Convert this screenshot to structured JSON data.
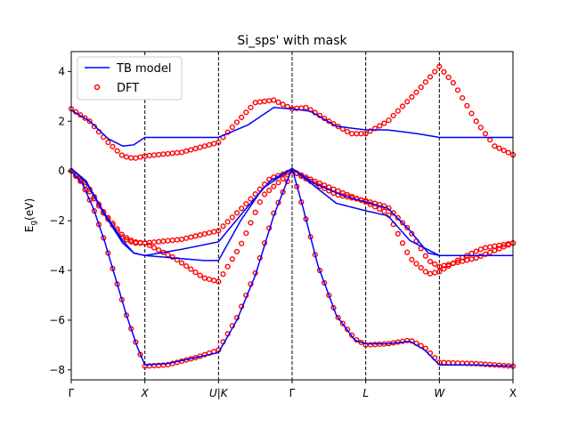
{
  "chart_data": {
    "type": "line",
    "title": "Si_sps' with mask",
    "xlabel": "",
    "ylabel": "E_g(eV)",
    "ylim": [
      -8.4,
      4.8
    ],
    "xlim": [
      0,
      6
    ],
    "yticks": [
      -8,
      -6,
      -4,
      -2,
      0,
      2,
      4
    ],
    "xticks": [
      {
        "pos": 0,
        "label": "Γ"
      },
      {
        "pos": 1,
        "label": "X"
      },
      {
        "pos": 2,
        "label": "U|K"
      },
      {
        "pos": 3,
        "label": "Γ"
      },
      {
        "pos": 4,
        "label": "L"
      },
      {
        "pos": 5,
        "label": "W"
      },
      {
        "pos": 6,
        "label": "X"
      }
    ],
    "high_symmetry_lines": [
      1,
      2,
      3,
      4,
      5
    ],
    "legend": {
      "position": "top-left",
      "entries": [
        "TB model",
        "DFT"
      ]
    },
    "series": [
      {
        "name": "TB model",
        "style": "line",
        "color": "#0000ff",
        "bands": [
          [
            [
              0,
              2.45
            ],
            [
              0.25,
              2.0
            ],
            [
              0.5,
              1.3
            ],
            [
              0.7,
              1.0
            ],
            [
              0.85,
              1.05
            ],
            [
              1,
              1.35
            ],
            [
              1.5,
              1.35
            ],
            [
              2,
              1.35
            ],
            [
              2.4,
              1.85
            ],
            [
              2.75,
              2.55
            ],
            [
              3,
              2.5
            ],
            [
              3.25,
              2.4
            ],
            [
              3.6,
              1.8
            ],
            [
              4,
              1.65
            ],
            [
              4.3,
              1.65
            ],
            [
              4.7,
              1.5
            ],
            [
              5,
              1.35
            ],
            [
              5.5,
              1.35
            ],
            [
              6,
              1.35
            ]
          ],
          [
            [
              0,
              0.1
            ],
            [
              0.2,
              -0.4
            ],
            [
              0.45,
              -1.7
            ],
            [
              0.7,
              -2.8
            ],
            [
              0.85,
              -3.3
            ],
            [
              1,
              -3.4
            ],
            [
              1.5,
              -3.15
            ],
            [
              2,
              -2.85
            ],
            [
              2.35,
              -1.6
            ],
            [
              2.7,
              -0.4
            ],
            [
              3,
              0.1
            ],
            [
              3.3,
              -0.6
            ],
            [
              3.6,
              -1.3
            ],
            [
              4,
              -1.6
            ],
            [
              4.3,
              -1.8
            ],
            [
              4.6,
              -2.8
            ],
            [
              5,
              -3.4
            ],
            [
              5.5,
              -3.4
            ],
            [
              6,
              -3.4
            ]
          ],
          [
            [
              0,
              0.1
            ],
            [
              0.2,
              -0.45
            ],
            [
              0.45,
              -1.75
            ],
            [
              0.7,
              -2.9
            ],
            [
              0.85,
              -3.3
            ],
            [
              1,
              -3.4
            ],
            [
              1.4,
              -3.5
            ],
            [
              1.8,
              -3.6
            ],
            [
              2,
              -3.6
            ],
            [
              2.3,
              -2.0
            ],
            [
              2.6,
              -0.7
            ],
            [
              3,
              0.1
            ],
            [
              3.3,
              -0.5
            ],
            [
              3.7,
              -1.0
            ],
            [
              4,
              -1.25
            ],
            [
              4.3,
              -1.5
            ],
            [
              4.6,
              -2.4
            ],
            [
              4.85,
              -3.3
            ],
            [
              5,
              -3.4
            ],
            [
              5.5,
              -3.4
            ],
            [
              6,
              -3.4
            ]
          ],
          [
            [
              0,
              0.0
            ],
            [
              0.15,
              -0.5
            ],
            [
              0.3,
              -1.5
            ],
            [
              0.45,
              -2.8
            ],
            [
              0.6,
              -4.3
            ],
            [
              0.75,
              -5.8
            ],
            [
              0.9,
              -7.1
            ],
            [
              1,
              -7.8
            ],
            [
              1.3,
              -7.75
            ],
            [
              1.7,
              -7.5
            ],
            [
              2,
              -7.3
            ],
            [
              2.25,
              -6.0
            ],
            [
              2.5,
              -4.2
            ],
            [
              2.75,
              -1.8
            ],
            [
              3,
              0.1
            ],
            [
              3.15,
              -1.5
            ],
            [
              3.35,
              -3.8
            ],
            [
              3.6,
              -5.8
            ],
            [
              3.85,
              -6.8
            ],
            [
              4,
              -6.95
            ],
            [
              4.3,
              -6.95
            ],
            [
              4.6,
              -6.85
            ],
            [
              4.8,
              -7.2
            ],
            [
              5,
              -7.8
            ],
            [
              5.5,
              -7.8
            ],
            [
              6,
              -7.85
            ]
          ]
        ]
      },
      {
        "name": "DFT",
        "style": "markers",
        "color": "#ff0000",
        "bands": [
          [
            [
              0,
              2.5
            ],
            [
              0.25,
              2.0
            ],
            [
              0.5,
              1.15
            ],
            [
              0.7,
              0.6
            ],
            [
              0.85,
              0.5
            ],
            [
              1,
              0.6
            ],
            [
              1.5,
              0.75
            ],
            [
              2,
              1.15
            ],
            [
              2.2,
              1.8
            ],
            [
              2.5,
              2.75
            ],
            [
              2.75,
              2.85
            ],
            [
              3,
              2.5
            ],
            [
              3.2,
              2.55
            ],
            [
              3.5,
              2.0
            ],
            [
              3.8,
              1.5
            ],
            [
              4,
              1.5
            ],
            [
              4.3,
              2.0
            ],
            [
              4.7,
              3.2
            ],
            [
              5,
              4.2
            ],
            [
              5.2,
              3.5
            ],
            [
              5.5,
              2.0
            ],
            [
              5.75,
              1.0
            ],
            [
              6,
              0.65
            ]
          ],
          [
            [
              0,
              0.0
            ],
            [
              0.2,
              -0.5
            ],
            [
              0.45,
              -1.7
            ],
            [
              0.7,
              -2.6
            ],
            [
              0.85,
              -2.85
            ],
            [
              1,
              -2.9
            ],
            [
              1.5,
              -2.75
            ],
            [
              2,
              -2.4
            ],
            [
              2.35,
              -1.4
            ],
            [
              2.7,
              -0.3
            ],
            [
              3,
              0.0
            ],
            [
              3.3,
              -0.5
            ],
            [
              3.6,
              -0.95
            ],
            [
              4,
              -1.2
            ],
            [
              4.3,
              -1.45
            ],
            [
              4.6,
              -2.4
            ],
            [
              4.85,
              -3.6
            ],
            [
              5,
              -3.85
            ],
            [
              5.5,
              -3.5
            ],
            [
              6,
              -2.9
            ]
          ],
          [
            [
              0,
              0.0
            ],
            [
              0.2,
              -0.6
            ],
            [
              0.45,
              -1.75
            ],
            [
              0.7,
              -2.7
            ],
            [
              0.85,
              -2.9
            ],
            [
              1,
              -2.9
            ],
            [
              1.4,
              -3.5
            ],
            [
              1.8,
              -4.3
            ],
            [
              2,
              -4.45
            ],
            [
              2.3,
              -3.0
            ],
            [
              2.6,
              -1.0
            ],
            [
              3,
              0.0
            ],
            [
              3.3,
              -0.4
            ],
            [
              3.7,
              -0.9
            ],
            [
              4,
              -1.25
            ],
            [
              4.3,
              -1.7
            ],
            [
              4.6,
              -3.5
            ],
            [
              4.85,
              -4.15
            ],
            [
              5,
              -4.05
            ],
            [
              5.3,
              -3.5
            ],
            [
              5.6,
              -3.1
            ],
            [
              6,
              -2.9
            ]
          ],
          [
            [
              0,
              0.0
            ],
            [
              0.15,
              -0.5
            ],
            [
              0.3,
              -1.5
            ],
            [
              0.45,
              -2.8
            ],
            [
              0.6,
              -4.3
            ],
            [
              0.75,
              -5.8
            ],
            [
              0.9,
              -7.1
            ],
            [
              1,
              -7.85
            ],
            [
              1.3,
              -7.8
            ],
            [
              1.7,
              -7.5
            ],
            [
              2,
              -7.2
            ],
            [
              2.25,
              -5.9
            ],
            [
              2.5,
              -4.1
            ],
            [
              2.75,
              -1.7
            ],
            [
              3,
              0.0
            ],
            [
              3.15,
              -1.5
            ],
            [
              3.35,
              -3.8
            ],
            [
              3.6,
              -5.8
            ],
            [
              3.85,
              -6.75
            ],
            [
              4,
              -7.0
            ],
            [
              4.3,
              -6.95
            ],
            [
              4.6,
              -6.8
            ],
            [
              4.8,
              -7.1
            ],
            [
              5,
              -7.7
            ],
            [
              5.5,
              -7.75
            ],
            [
              6,
              -7.85
            ]
          ]
        ]
      }
    ]
  }
}
